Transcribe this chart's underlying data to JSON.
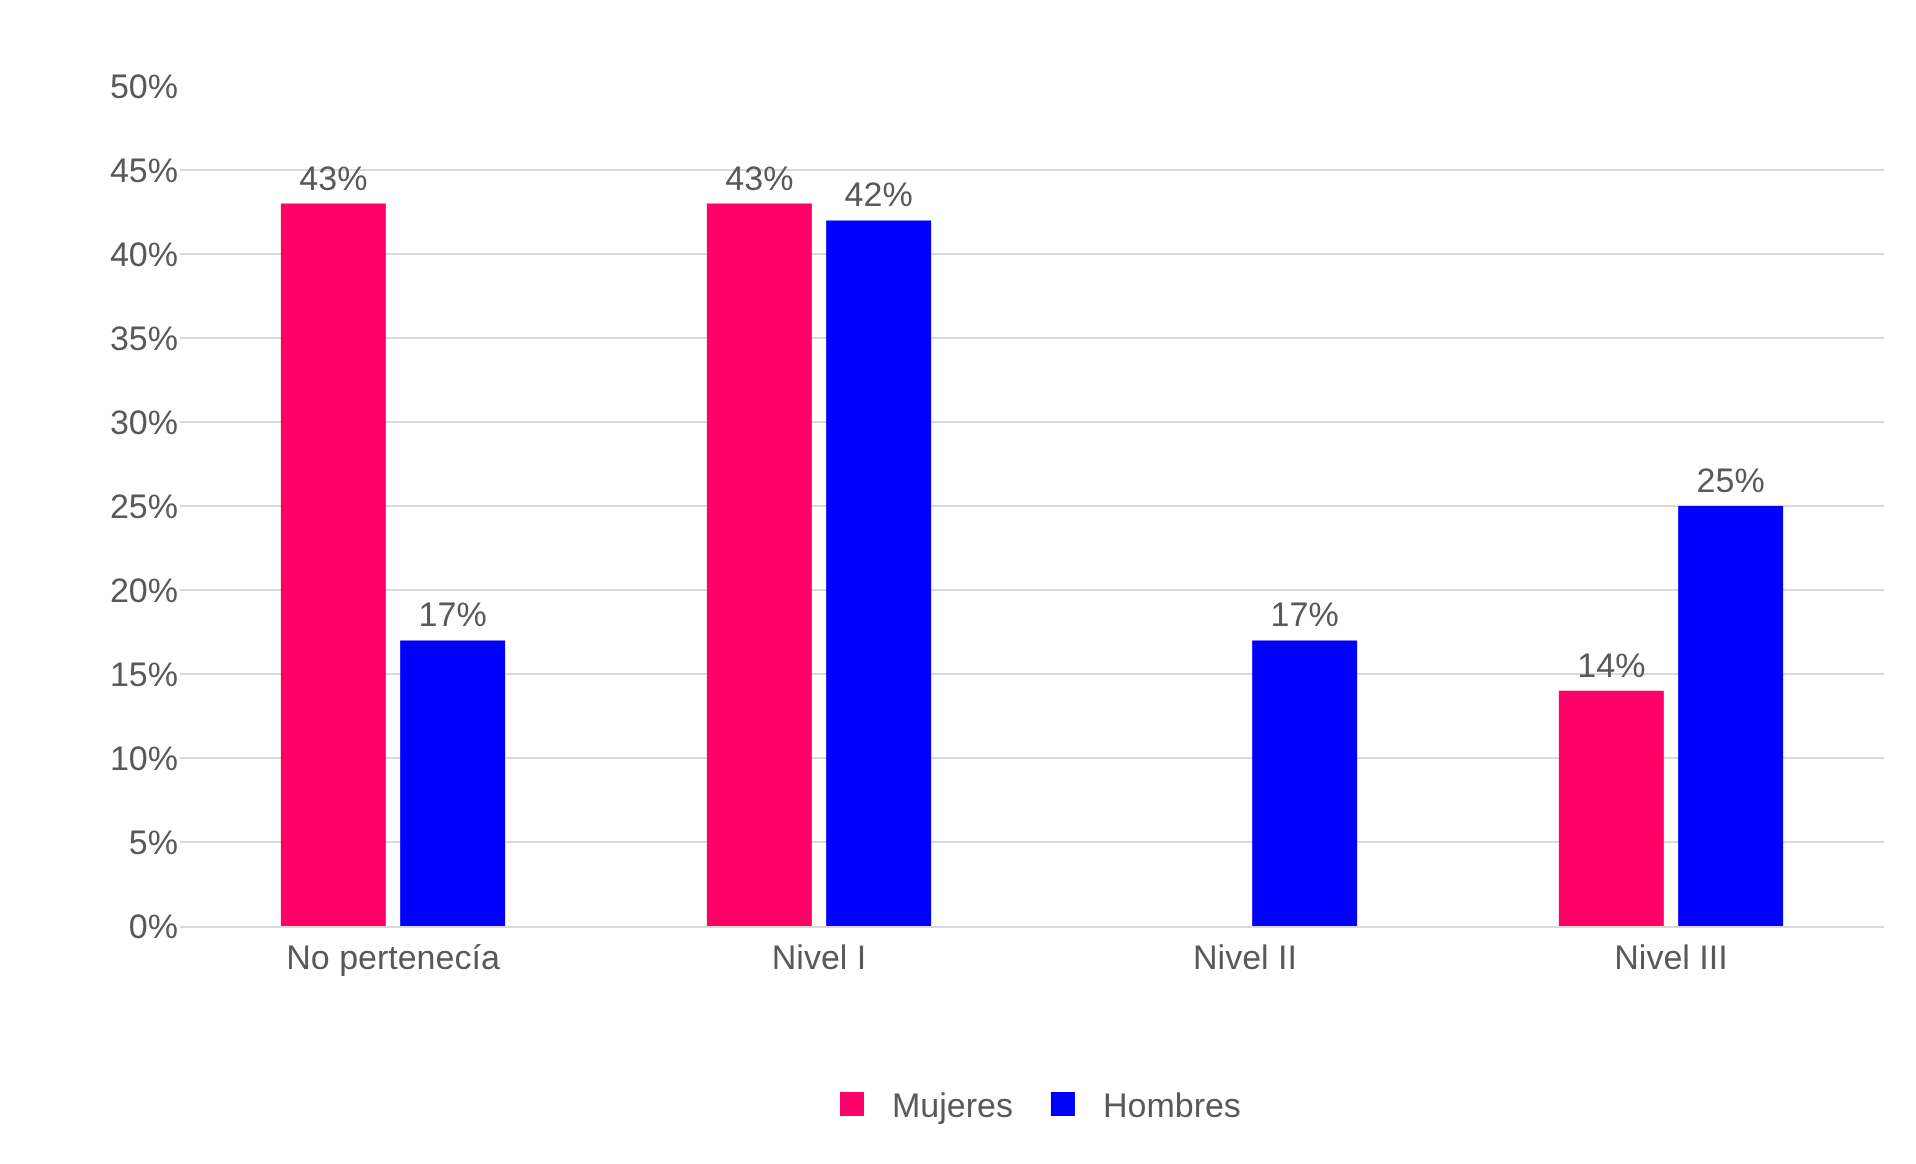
{
  "chart_data": {
    "type": "bar",
    "categories": [
      "No pertenecía",
      "Nivel I",
      "Nivel II",
      "Nivel III"
    ],
    "series": [
      {
        "name": "Mujeres",
        "color": "#ff0066",
        "values": [
          43,
          43,
          null,
          14
        ],
        "value_labels": [
          "43%",
          "43%",
          null,
          "14%"
        ]
      },
      {
        "name": "Hombres",
        "color": "#0000ff",
        "values": [
          17,
          42,
          17,
          25
        ],
        "value_labels": [
          "17%",
          "42%",
          "17%",
          "25%"
        ]
      }
    ],
    "ylim": [
      0,
      50
    ],
    "yticks": [
      {
        "value": 0,
        "label": "0%"
      },
      {
        "value": 5,
        "label": "5%"
      },
      {
        "value": 10,
        "label": "10%"
      },
      {
        "value": 15,
        "label": "15%"
      },
      {
        "value": 20,
        "label": "20%"
      },
      {
        "value": 25,
        "label": "25%"
      },
      {
        "value": 30,
        "label": "30%"
      },
      {
        "value": 35,
        "label": "35%"
      },
      {
        "value": 40,
        "label": "40%"
      },
      {
        "value": 45,
        "label": "45%"
      },
      {
        "value": 50,
        "label": "50%"
      }
    ],
    "grid": "y",
    "legend": "bottom"
  }
}
